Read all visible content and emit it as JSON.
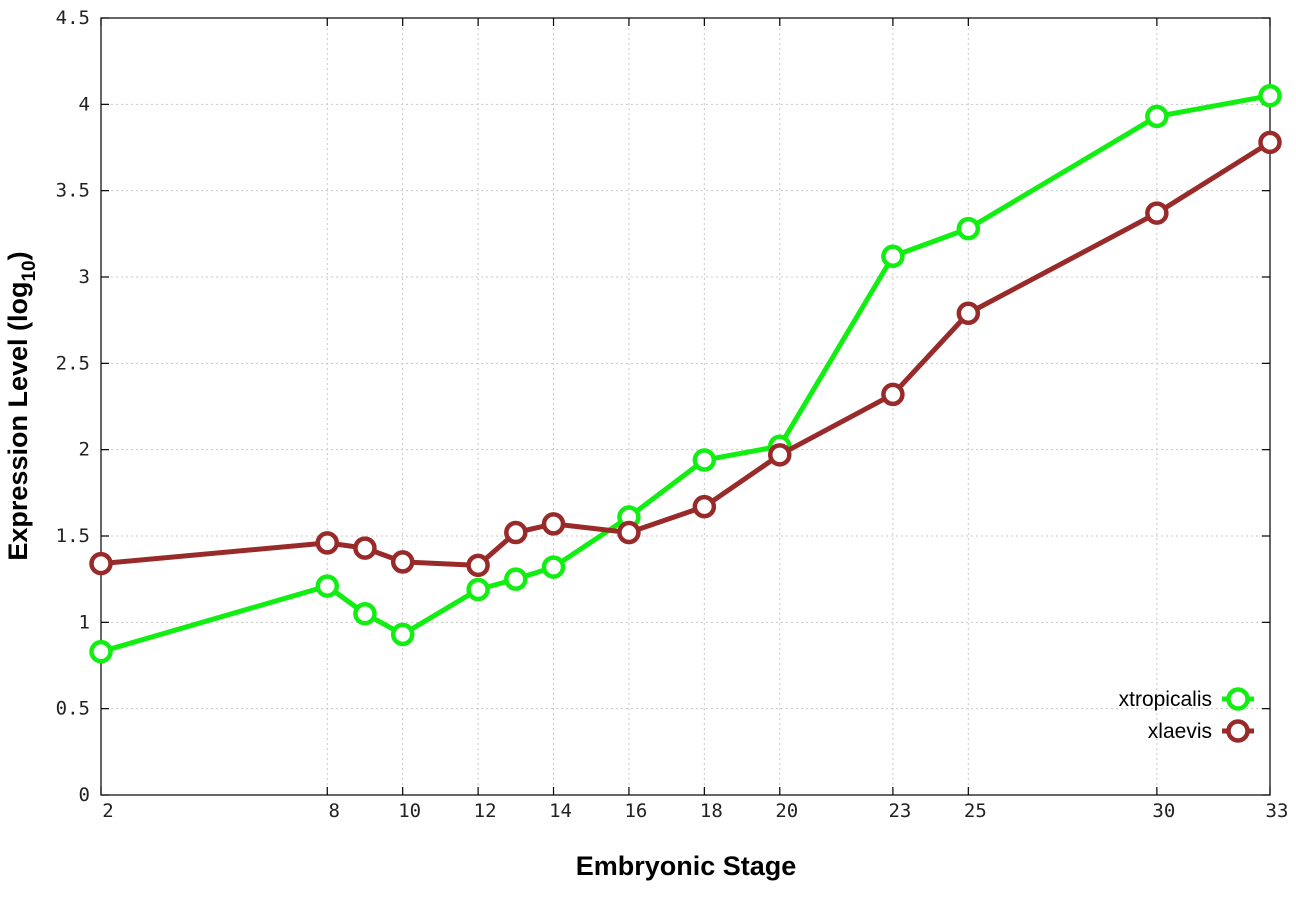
{
  "chart_data": {
    "type": "line",
    "xlabel": "Embryonic Stage",
    "ylabel": "Expression Level (log",
    "ylabel_subscript": "10",
    "ylabel_suffix": ")",
    "ylim": [
      0,
      4.5
    ],
    "y_ticks": [
      0,
      0.5,
      1,
      1.5,
      2,
      2.5,
      3,
      3.5,
      4,
      4.5
    ],
    "y_tick_labels": [
      "0",
      "0.5",
      "1",
      "1.5",
      "2",
      "2.5",
      "3",
      "3.5",
      "4",
      "4.5"
    ],
    "categories": [
      "2",
      "8",
      "9",
      "10",
      "12",
      "13",
      "14",
      "16",
      "18",
      "20",
      "23",
      "25",
      "30",
      "33"
    ],
    "x_tick_labels": [
      "2",
      "8",
      "10",
      "12",
      "14",
      "16",
      "18",
      "20",
      "23",
      "25",
      "30",
      "33"
    ],
    "grid": true,
    "legend_position": "bottom-right",
    "series": [
      {
        "name": "xtropicalis",
        "color": "#11ee11",
        "values": [
          0.83,
          1.21,
          1.05,
          0.93,
          1.19,
          1.25,
          1.32,
          1.61,
          1.94,
          2.02,
          3.12,
          3.28,
          3.93,
          4.05
        ]
      },
      {
        "name": "xlaevis",
        "color": "#992a2a",
        "values": [
          1.34,
          1.46,
          1.43,
          1.35,
          1.33,
          1.52,
          1.57,
          1.52,
          1.67,
          1.97,
          2.32,
          2.79,
          3.37,
          3.78
        ]
      }
    ]
  }
}
